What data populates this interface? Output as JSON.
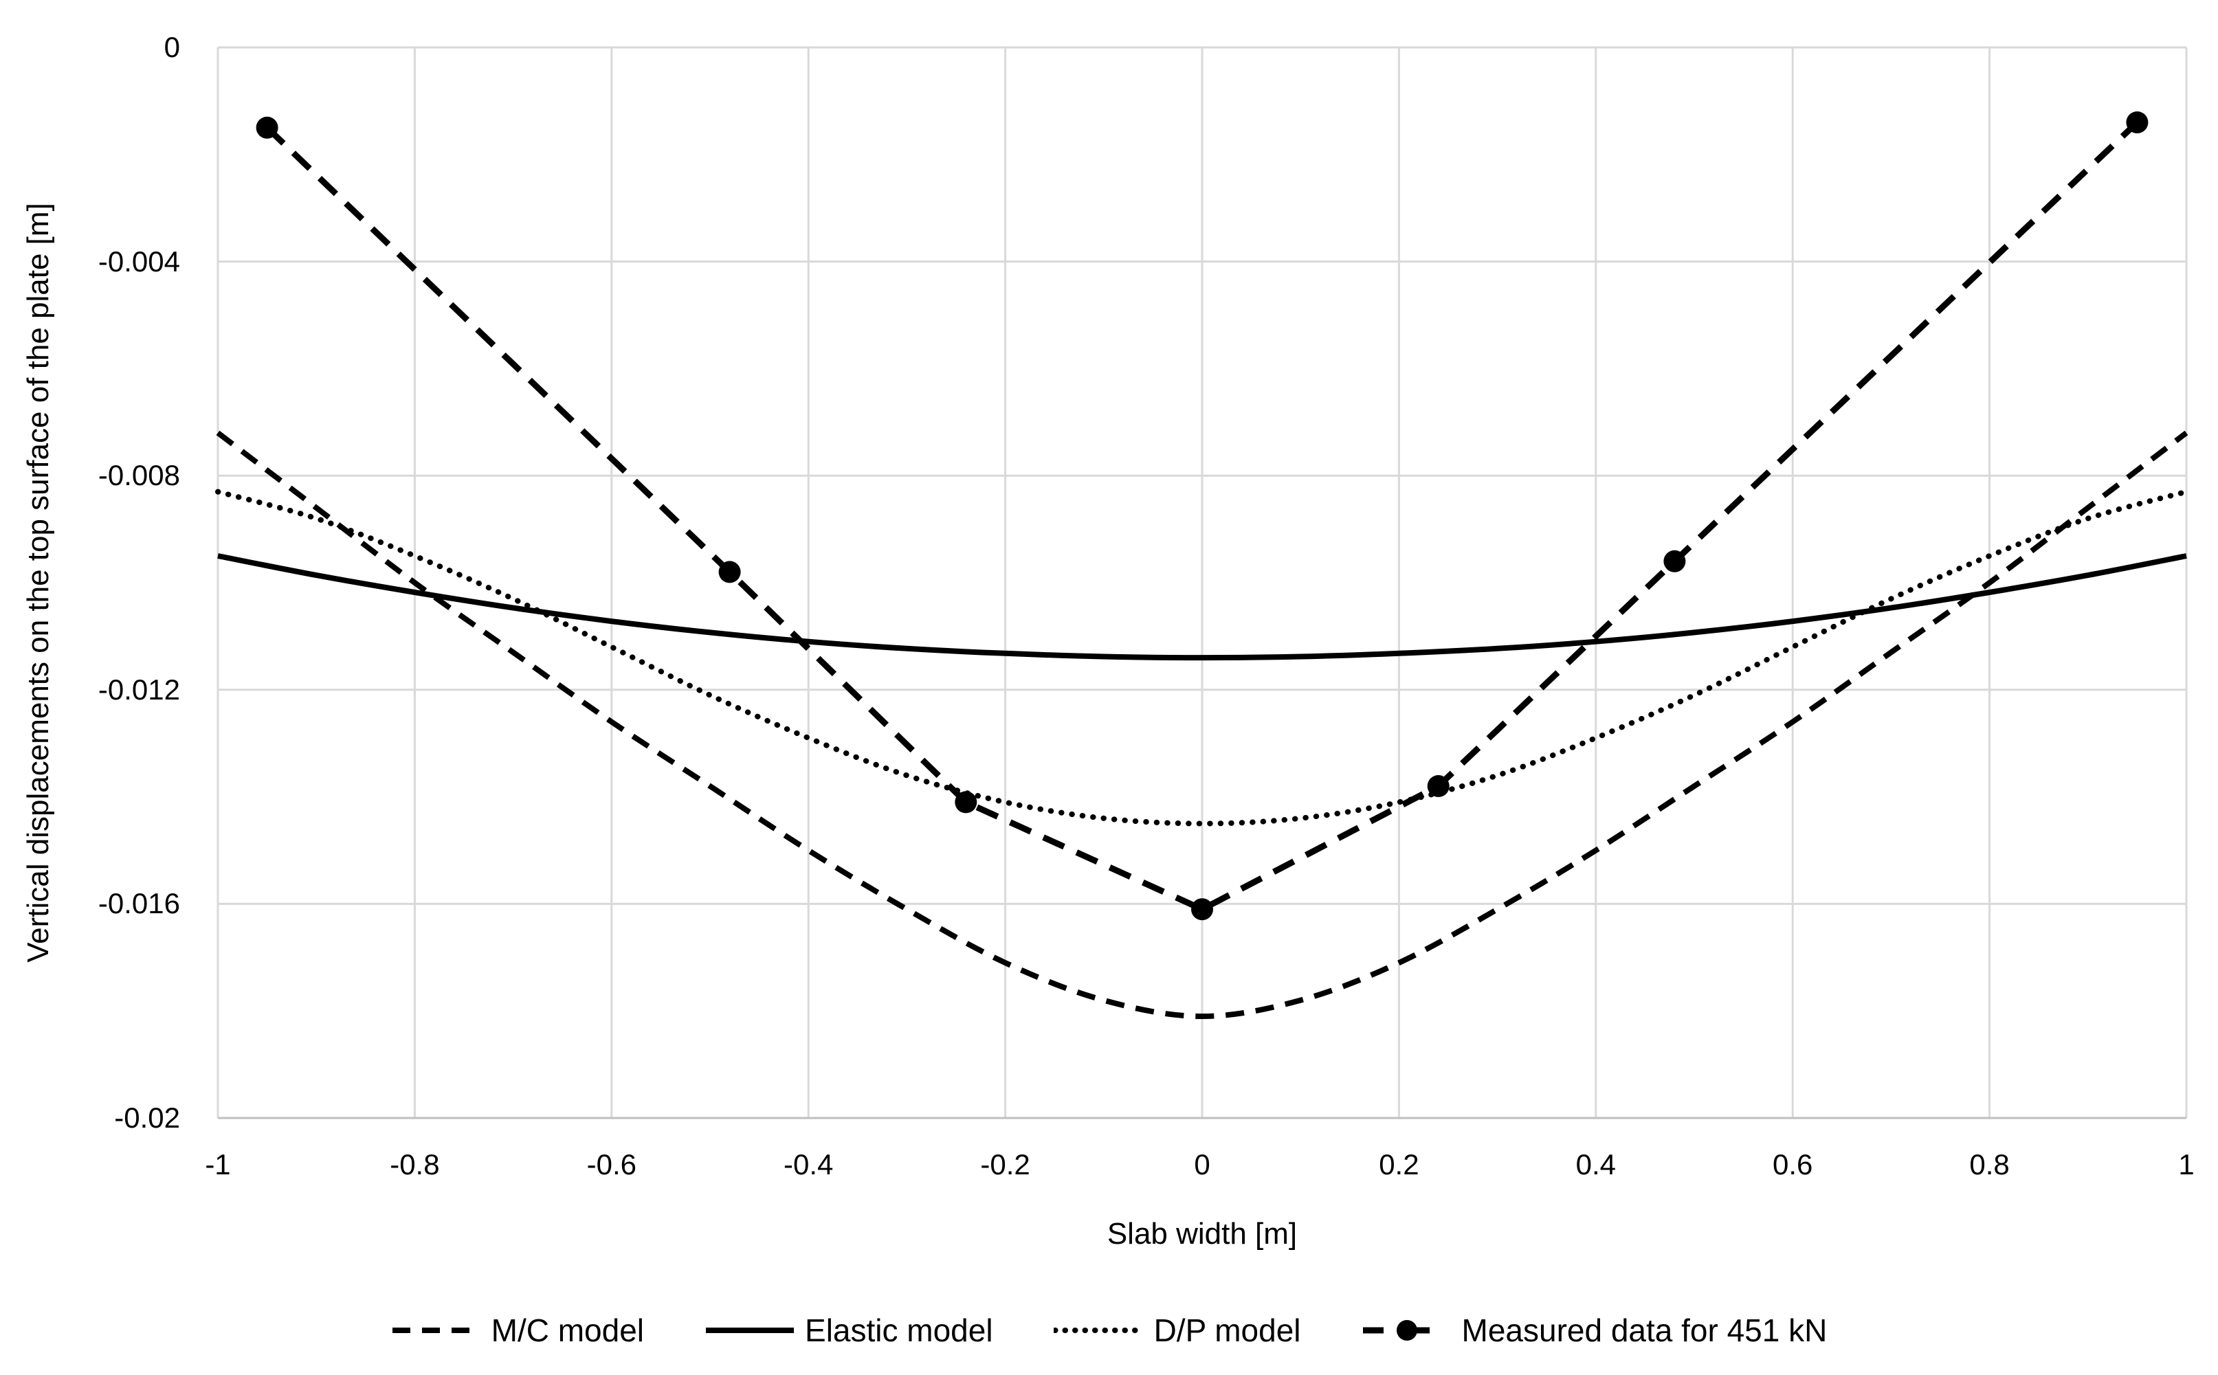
{
  "chart": {
    "y_axis": {
      "title": "Vertical displacements on the top surface of the plate [m]",
      "ticks": [
        {
          "v": 0,
          "label": "0"
        },
        {
          "v": -0.004,
          "label": "-0.004"
        },
        {
          "v": -0.008,
          "label": "-0.008"
        },
        {
          "v": -0.012,
          "label": "-0.012"
        },
        {
          "v": -0.016,
          "label": "-0.016"
        },
        {
          "v": -0.02,
          "label": "-0.02"
        }
      ]
    },
    "x_axis": {
      "title": "Slab width [m]",
      "ticks": [
        {
          "v": -1,
          "label": "-1"
        },
        {
          "v": -0.8,
          "label": "-0.8"
        },
        {
          "v": -0.6,
          "label": "-0.6"
        },
        {
          "v": -0.4,
          "label": "-0.4"
        },
        {
          "v": -0.2,
          "label": "-0.2"
        },
        {
          "v": 0,
          "label": "0"
        },
        {
          "v": 0.2,
          "label": "0.2"
        },
        {
          "v": 0.4,
          "label": "0.4"
        },
        {
          "v": 0.6,
          "label": "0.6"
        },
        {
          "v": 0.8,
          "label": "0.8"
        },
        {
          "v": 1,
          "label": "1"
        }
      ]
    },
    "legend": [
      {
        "label": "M/C model",
        "style": "dashed"
      },
      {
        "label": "Elastic model",
        "style": "solid"
      },
      {
        "label": "D/P model",
        "style": "dotted"
      },
      {
        "label": "Measured data for 451 kN",
        "style": "dash-marker"
      }
    ],
    "colors": {
      "line": "#000000",
      "grid": "#d9d9d9",
      "axis": "#bfbfbf",
      "text": "#000000",
      "background": "#ffffff"
    }
  },
  "chart_data": {
    "type": "line",
    "title": "",
    "xlabel": "Slab width [m]",
    "ylabel": "Vertical displacements on the top surface of the plate [m]",
    "xlim": [
      -1,
      1
    ],
    "ylim": [
      -0.02,
      0
    ],
    "grid": true,
    "legend_position": "bottom",
    "series": [
      {
        "name": "M/C model",
        "style": "dashed",
        "smooth": true,
        "x": [
          -1,
          -0.9,
          -0.8,
          -0.7,
          -0.6,
          -0.5,
          -0.4,
          -0.3,
          -0.2,
          -0.1,
          0,
          0.1,
          0.2,
          0.3,
          0.4,
          0.5,
          0.6,
          0.7,
          0.8,
          0.9,
          1
        ],
        "y": [
          -0.0072,
          -0.0086,
          -0.01,
          -0.0113,
          -0.0126,
          -0.0138,
          -0.015,
          -0.0161,
          -0.0171,
          -0.0178,
          -0.0181,
          -0.0178,
          -0.0171,
          -0.0161,
          -0.015,
          -0.0138,
          -0.0126,
          -0.0113,
          -0.01,
          -0.0086,
          -0.0072
        ]
      },
      {
        "name": "Elastic model",
        "style": "solid",
        "smooth": true,
        "x": [
          -1,
          -0.9,
          -0.8,
          -0.7,
          -0.6,
          -0.5,
          -0.4,
          -0.3,
          -0.2,
          -0.1,
          0,
          0.1,
          0.2,
          0.3,
          0.4,
          0.5,
          0.6,
          0.7,
          0.8,
          0.9,
          1
        ],
        "y": [
          -0.0095,
          -0.00986,
          -0.01018,
          -0.01047,
          -0.01072,
          -0.01093,
          -0.0111,
          -0.01123,
          -0.01132,
          -0.01138,
          -0.0114,
          -0.01138,
          -0.01132,
          -0.01123,
          -0.0111,
          -0.01093,
          -0.01072,
          -0.01047,
          -0.01018,
          -0.00986,
          -0.0095
        ]
      },
      {
        "name": "D/P model",
        "style": "dotted",
        "smooth": true,
        "x": [
          -1,
          -0.9,
          -0.8,
          -0.7,
          -0.6,
          -0.5,
          -0.4,
          -0.3,
          -0.2,
          -0.1,
          0,
          0.1,
          0.2,
          0.3,
          0.4,
          0.5,
          0.6,
          0.7,
          0.8,
          0.9,
          1
        ],
        "y": [
          -0.0083,
          -0.0088,
          -0.0095,
          -0.0103,
          -0.0112,
          -0.0121,
          -0.0129,
          -0.0136,
          -0.0141,
          -0.0144,
          -0.0145,
          -0.0144,
          -0.0141,
          -0.0136,
          -0.0129,
          -0.0121,
          -0.0112,
          -0.0103,
          -0.0095,
          -0.0088,
          -0.0083
        ]
      },
      {
        "name": "Measured data for 451 kN",
        "style": "dash-marker",
        "smooth": false,
        "marker": "circle",
        "x": [
          -0.95,
          -0.48,
          -0.24,
          0,
          0.24,
          0.48,
          0.95
        ],
        "y": [
          -0.0015,
          -0.0098,
          -0.0141,
          -0.0161,
          -0.0138,
          -0.0096,
          -0.0014
        ]
      }
    ]
  }
}
